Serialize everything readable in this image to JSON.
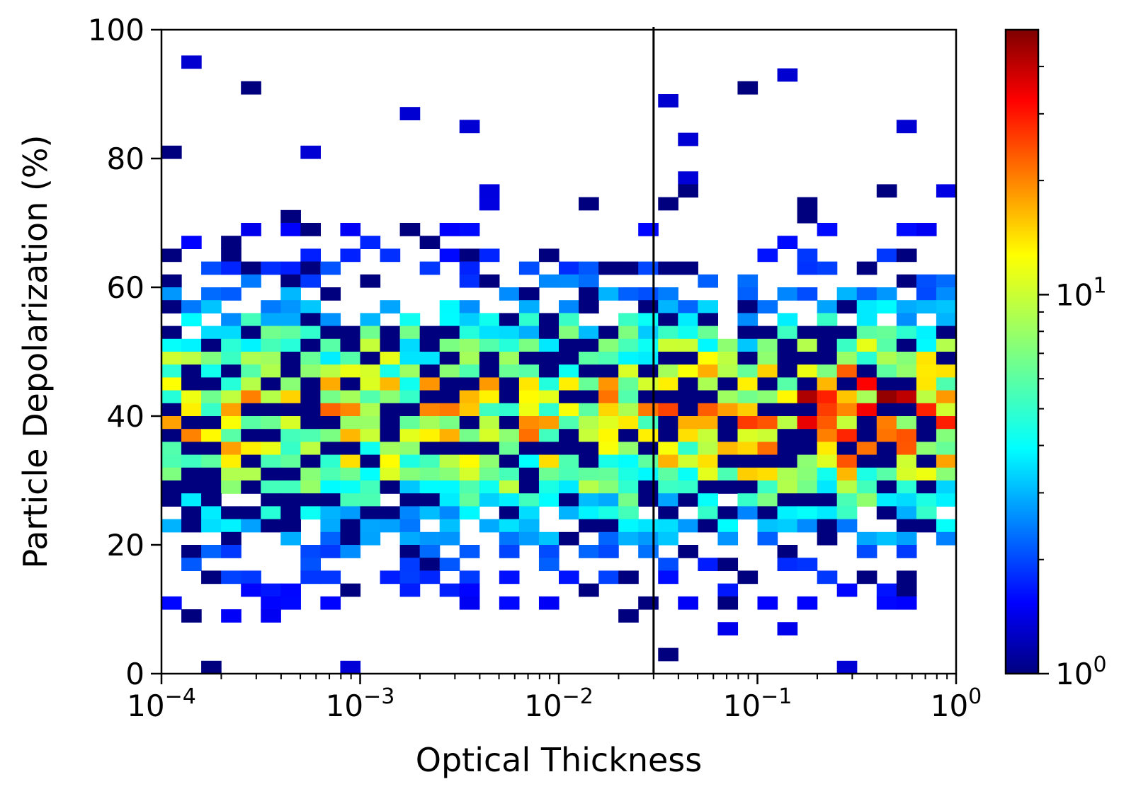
{
  "chart_data": {
    "type": "heatmap",
    "title": "",
    "xlabel": "Optical Thickness",
    "ylabel": "Particle Depolarization (%)",
    "x_scale": "log",
    "xlim": [
      0.0001,
      1
    ],
    "ylim": [
      0,
      100
    ],
    "x_ticks": [
      {
        "base": "10",
        "exp": "−4",
        "value": 0.0001
      },
      {
        "base": "10",
        "exp": "−3",
        "value": 0.001
      },
      {
        "base": "10",
        "exp": "−2",
        "value": 0.01
      },
      {
        "base": "10",
        "exp": "−1",
        "value": 0.1
      },
      {
        "base": "10",
        "exp": "0",
        "value": 1
      }
    ],
    "y_ticks": [
      "0",
      "20",
      "40",
      "60",
      "80",
      "100"
    ],
    "vertical_line_x": 0.03,
    "bins_x": 40,
    "bins_y": 50,
    "colormap": "jet",
    "colorbar": {
      "scale": "log",
      "range": [
        1,
        50
      ],
      "ticks": [
        {
          "base": "10",
          "exp": "0",
          "value": 1
        },
        {
          "base": "10",
          "exp": "1",
          "value": 10
        }
      ]
    },
    "grid": false,
    "cell_rows_top_to_bottom": [
      ".......",
      "...............9",
      "9...9",
      "..9..9.999..9.9..9",
      "9..9..99...9.9..99....9",
      "..9..999.....9",
      "....9.......99.9.9.9....99..9..9.......9",
      "..9.9....9..............................",
      "..99..99.9.9.99..9......................",
      "...99999.9...99.9..99.9.................",
      "...999..99...99..999.9..9.9.9..999..9...",
      ".......999..99.....99...................",
      ".......999.............................9",
      "..999..................................9"
    ],
    "color_stops": [
      "#00007f",
      "#0000ff",
      "#007fff",
      "#00ffff",
      "#7fff7f",
      "#ffff00",
      "#ff7f00",
      "#ff0000",
      "#7f0000"
    ]
  }
}
